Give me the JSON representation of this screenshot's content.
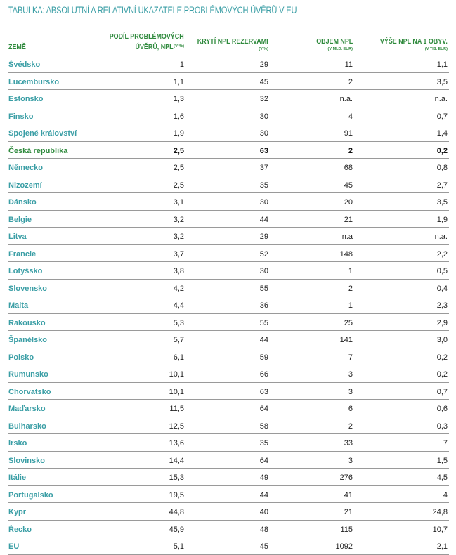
{
  "title": "TABULKA: ABSOLUTNÍ A RELATIVNÍ UKAZATELE PROBLÉMOVÝCH ÚVĚRŮ V EU",
  "headers": {
    "country": "ZEMĚ",
    "npl_share_line1": "PODÍL PROBLÉMOVÝCH",
    "npl_share_line2": "ÚVĚRŮ, NPL",
    "npl_share_unit": "(V %)",
    "coverage": "KRYTÍ NPL REZERVAMI",
    "coverage_unit": "(V %)",
    "volume": "OBJEM NPL",
    "volume_unit": "(V MLD. EUR)",
    "per_capita": "VÝŠE NPL NA 1 OBYV.",
    "per_capita_unit": "(V TIS. EUR)"
  },
  "rows": [
    {
      "country": "Švédsko",
      "share": "1",
      "coverage": "29",
      "volume": "11",
      "per_capita": "1,1"
    },
    {
      "country": "Lucembursko",
      "share": "1,1",
      "coverage": "45",
      "volume": "2",
      "per_capita": "3,5"
    },
    {
      "country": "Estonsko",
      "share": "1,3",
      "coverage": "32",
      "volume": "n.a.",
      "per_capita": "n.a."
    },
    {
      "country": "Finsko",
      "share": "1,6",
      "coverage": "30",
      "volume": "4",
      "per_capita": "0,7"
    },
    {
      "country": "Spojené království",
      "share": "1,9",
      "coverage": "30",
      "volume": "91",
      "per_capita": "1,4"
    },
    {
      "country": "Česká republika",
      "share": "2,5",
      "coverage": "63",
      "volume": "2",
      "per_capita": "0,2"
    },
    {
      "country": "Německo",
      "share": "2,5",
      "coverage": "37",
      "volume": "68",
      "per_capita": "0,8"
    },
    {
      "country": "Nizozemí",
      "share": "2,5",
      "coverage": "35",
      "volume": "45",
      "per_capita": "2,7"
    },
    {
      "country": "Dánsko",
      "share": "3,1",
      "coverage": "30",
      "volume": "20",
      "per_capita": "3,5"
    },
    {
      "country": "Belgie",
      "share": "3,2",
      "coverage": "44",
      "volume": "21",
      "per_capita": "1,9"
    },
    {
      "country": "Litva",
      "share": "3,2",
      "coverage": "29",
      "volume": "n.a",
      "per_capita": "n.a."
    },
    {
      "country": "Francie",
      "share": "3,7",
      "coverage": "52",
      "volume": "148",
      "per_capita": "2,2"
    },
    {
      "country": "Lotyšsko",
      "share": "3,8",
      "coverage": "30",
      "volume": "1",
      "per_capita": "0,5"
    },
    {
      "country": "Slovensko",
      "share": "4,2",
      "coverage": "55",
      "volume": "2",
      "per_capita": "0,4"
    },
    {
      "country": "Malta",
      "share": "4,4",
      "coverage": "36",
      "volume": "1",
      "per_capita": "2,3"
    },
    {
      "country": "Rakousko",
      "share": "5,3",
      "coverage": "55",
      "volume": "25",
      "per_capita": "2,9"
    },
    {
      "country": "Španělsko",
      "share": "5,7",
      "coverage": "44",
      "volume": "141",
      "per_capita": "3,0"
    },
    {
      "country": "Polsko",
      "share": "6,1",
      "coverage": "59",
      "volume": "7",
      "per_capita": "0,2"
    },
    {
      "country": "Rumunsko",
      "share": "10,1",
      "coverage": "66",
      "volume": "3",
      "per_capita": "0,2"
    },
    {
      "country": "Chorvatsko",
      "share": "10,1",
      "coverage": "63",
      "volume": "3",
      "per_capita": "0,7"
    },
    {
      "country": "Maďarsko",
      "share": "11,5",
      "coverage": "64",
      "volume": "6",
      "per_capita": "0,6"
    },
    {
      "country": "Bulharsko",
      "share": "12,5",
      "coverage": "58",
      "volume": "2",
      "per_capita": "0,3"
    },
    {
      "country": "Irsko",
      "share": "13,6",
      "coverage": "35",
      "volume": "33",
      "per_capita": "7"
    },
    {
      "country": "Slovinsko",
      "share": "14,4",
      "coverage": "64",
      "volume": "3",
      "per_capita": "1,5"
    },
    {
      "country": "Itálie",
      "share": "15,3",
      "coverage": "49",
      "volume": "276",
      "per_capita": "4,5"
    },
    {
      "country": "Portugalsko",
      "share": "19,5",
      "coverage": "44",
      "volume": "41",
      "per_capita": "4"
    },
    {
      "country": "Kypr",
      "share": "44,8",
      "coverage": "40",
      "volume": "21",
      "per_capita": "24,8"
    },
    {
      "country": "Řecko",
      "share": "45,9",
      "coverage": "48",
      "volume": "115",
      "per_capita": "10,7"
    },
    {
      "country": "EU",
      "share": "5,1",
      "coverage": "45",
      "volume": "1092",
      "per_capita": "2,1"
    }
  ],
  "highlight_country": "Česká republika",
  "colors": {
    "title": "#3a9ea5",
    "header": "#2f8a3d",
    "country": "#3a9ea5"
  }
}
